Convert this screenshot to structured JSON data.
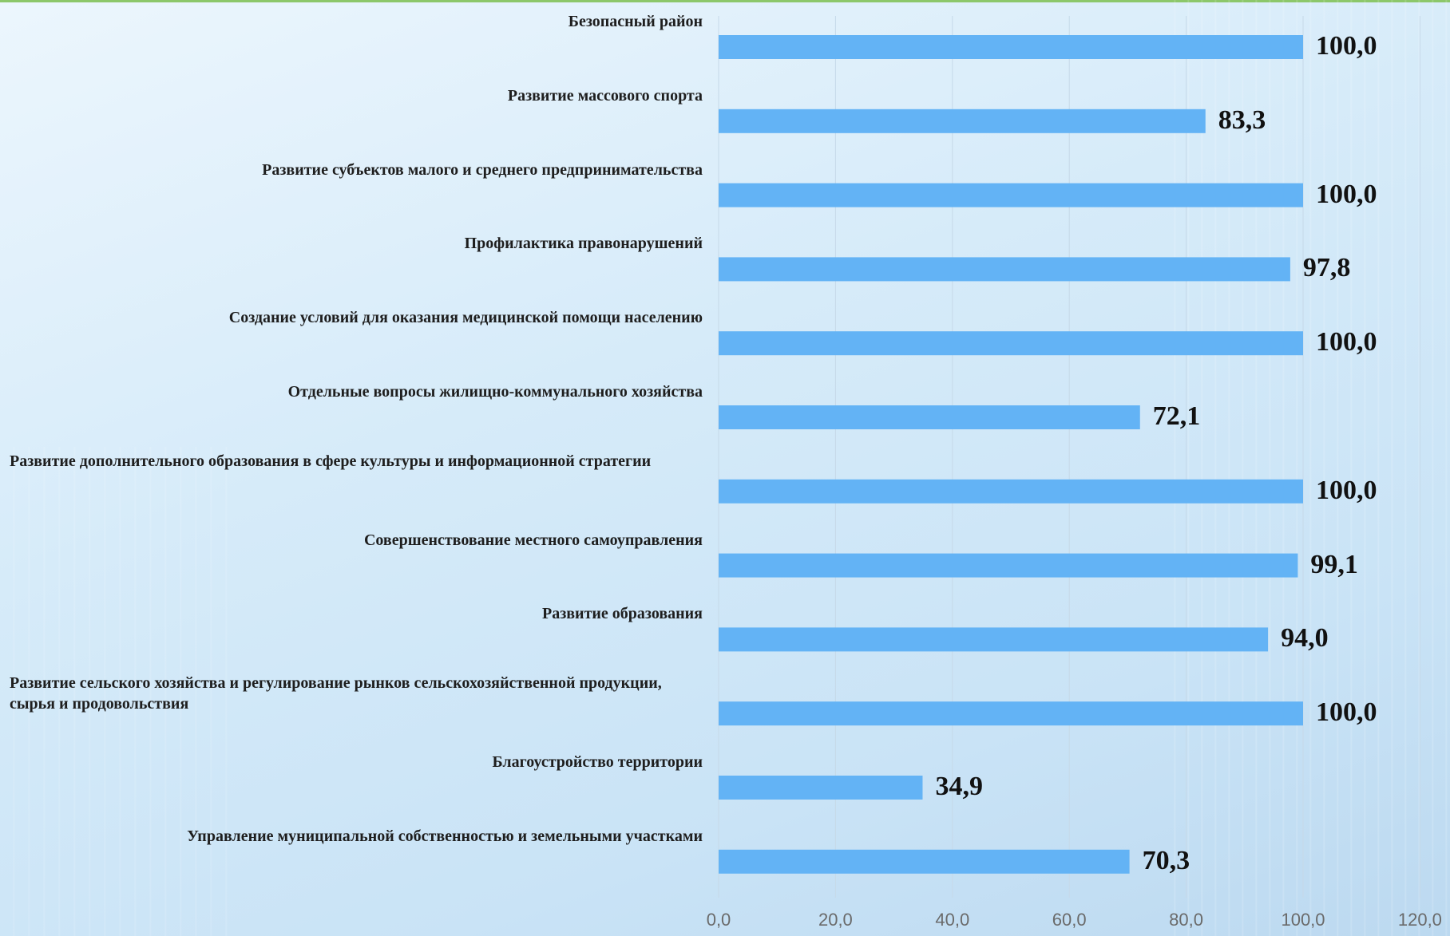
{
  "chart_data": {
    "type": "bar",
    "orientation": "horizontal",
    "categories": [
      "Безопасный район",
      "Развитие массового спорта",
      "Развитие субъектов малого и среднего предпринимательства",
      "Профилактика правонарушений",
      "Создание условий для оказания медицинской помощи населению",
      "Отдельные вопросы жилищно-коммунального хозяйства",
      "Развитие дополнительного образования  в сфере культуры  и информационной стратегии",
      "Совершенствование местного самоуправления",
      "Развитие образования",
      "Развитие сельского хозяйства и регулирование рынков сельскохозяйственной продукции, сырья и продовольствия",
      "Благоустройство территории",
      "Управление муниципальной собственностью и земельными участками"
    ],
    "values": [
      100.0,
      83.3,
      100.0,
      97.8,
      100.0,
      72.1,
      100.0,
      99.1,
      94.0,
      100.0,
      34.9,
      70.3
    ],
    "value_labels": [
      "100,0",
      "83,3",
      "100,0",
      "97,8",
      "100,0",
      "72,1",
      "100,0",
      "99,1",
      "94,0",
      "100,0",
      "34,9",
      "70,3"
    ],
    "xlim": [
      0,
      120
    ],
    "x_ticks": [
      "0,0",
      "20,0",
      "40,0",
      "60,0",
      "80,0",
      "100,0",
      "120,0"
    ],
    "grid": true,
    "bar_color": "#63b3f5"
  }
}
